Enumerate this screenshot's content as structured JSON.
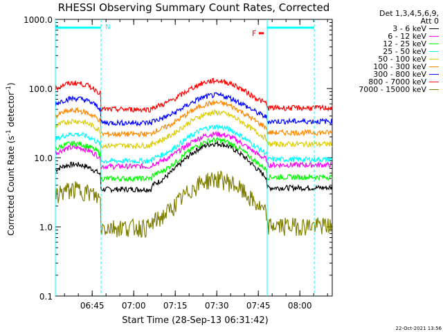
{
  "chart_data": {
    "type": "line",
    "title": "RHESSI Observing Summary Count Rates, Corrected",
    "ylabel": "Corrected Count Rate (s^-1 detector^-1)",
    "xlabel": "Start Time (28-Sep-13 06:31:42)",
    "yscale": "log",
    "ylim": [
      0.1,
      1000
    ],
    "xlim_minutes": [
      0,
      100
    ],
    "yticks": [
      "0.1",
      "1.0",
      "10.0",
      "100.0",
      "1000.0"
    ],
    "xticks": [
      {
        "label": "06:45",
        "minute": 13.3
      },
      {
        "label": "07:00",
        "minute": 28.3
      },
      {
        "label": "07:15",
        "minute": 43.3
      },
      {
        "label": "07:30",
        "minute": 58.3
      },
      {
        "label": "07:45",
        "minute": 73.3
      },
      {
        "label": "08:00",
        "minute": 88.3
      }
    ],
    "night_intervals_minutes": [
      [
        0,
        16.5
      ],
      [
        76.5,
        93.5
      ]
    ],
    "night_marker_label": "N",
    "flare_marker": {
      "label": "F",
      "start_minute": 76.5,
      "end_minute": 77.5
    },
    "series": [
      {
        "name": "3 - 6 keV",
        "color": "#000000",
        "dawn": 8,
        "night": 3.5,
        "peak": 16
      },
      {
        "name": "6 - 12 keV",
        "color": "#ff00ff",
        "dawn": 14,
        "night": 7.5,
        "peak": 22
      },
      {
        "name": "12 - 25 keV",
        "color": "#00ff00",
        "dawn": 16,
        "night": 5,
        "peak": 18
      },
      {
        "name": "25 - 50 keV",
        "color": "#00ffff",
        "dawn": 22,
        "night": 9,
        "peak": 28
      },
      {
        "name": "50 - 100 keV",
        "color": "#ddcc00",
        "dawn": 34,
        "night": 15,
        "peak": 45
      },
      {
        "name": "100 - 300 keV",
        "color": "#ff8800",
        "dawn": 48,
        "night": 22,
        "peak": 62
      },
      {
        "name": "300 - 800 keV",
        "color": "#0000ff",
        "dawn": 72,
        "night": 32,
        "peak": 80
      },
      {
        "name": "800 - 7000 keV",
        "color": "#ff0000",
        "dawn": 120,
        "night": 50,
        "peak": 130
      },
      {
        "name": "7000 - 15000 keV",
        "color": "#808000",
        "dawn": 3.5,
        "night": 1.0,
        "peak": 5
      }
    ],
    "legend_header": [
      "Det 1,3,4,5,6,9,",
      "Att 0"
    ]
  },
  "footer": {
    "timestamp": "22-Oct-2021 13:56"
  },
  "colors": {
    "night_marker": "#00ffff",
    "flare_marker": "#ff0000"
  }
}
